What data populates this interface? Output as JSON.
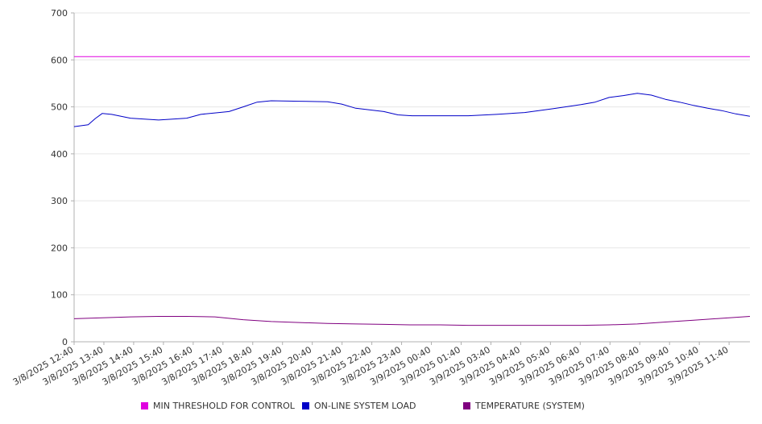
{
  "chart_data": {
    "type": "line",
    "title": "",
    "xlabel": "",
    "ylabel": "",
    "ylim": [
      0,
      700
    ],
    "y_ticks": [
      0,
      100,
      200,
      300,
      400,
      500,
      600,
      700
    ],
    "x_range": [
      "3/8/2025 12:40",
      "3/9/2025 12:40"
    ],
    "x_tick_labels": [
      "3/8/2025 12:40",
      "3/8/2025 13:40",
      "3/8/2025 14:40",
      "3/8/2025 15:40",
      "3/8/2025 16:40",
      "3/8/2025 17:40",
      "3/8/2025 18:40",
      "3/8/2025 19:40",
      "3/8/2025 20:40",
      "3/8/2025 21:40",
      "3/8/2025 22:40",
      "3/8/2025 23:40",
      "3/9/2025 00:40",
      "3/9/2025 01:40",
      "3/9/2025 03:40",
      "3/9/2025 04:40",
      "3/9/2025 05:40",
      "3/9/2025 06:40",
      "3/9/2025 07:40",
      "3/9/2025 08:40",
      "3/9/2025 09:40",
      "3/9/2025 10:40",
      "3/9/2025 11:40"
    ],
    "grid": true,
    "legend_position": "bottom",
    "series": [
      {
        "name": "MIN THRESHOLD FOR CONTROL",
        "color": "#e000e0",
        "x": [
          "3/8/2025 12:40",
          "3/9/2025 12:40"
        ],
        "values": [
          607,
          607
        ]
      },
      {
        "name": "ON-LINE SYSTEM LOAD",
        "color": "#0000c8",
        "x": [
          "3/8/2025 12:40",
          "3/8/2025 13:10",
          "3/8/2025 13:25",
          "3/8/2025 13:40",
          "3/8/2025 14:00",
          "3/8/2025 14:40",
          "3/8/2025 15:40",
          "3/8/2025 16:40",
          "3/8/2025 17:10",
          "3/8/2025 17:40",
          "3/8/2025 18:10",
          "3/8/2025 18:40",
          "3/8/2025 19:10",
          "3/8/2025 19:40",
          "3/8/2025 20:40",
          "3/8/2025 21:40",
          "3/8/2025 22:10",
          "3/8/2025 22:40",
          "3/8/2025 23:40",
          "3/9/2025 00:10",
          "3/9/2025 00:40",
          "3/9/2025 01:40",
          "3/9/2025 02:40",
          "3/9/2025 03:40",
          "3/9/2025 04:40",
          "3/9/2025 05:40",
          "3/9/2025 06:40",
          "3/9/2025 07:10",
          "3/9/2025 07:40",
          "3/9/2025 08:10",
          "3/9/2025 08:40",
          "3/9/2025 09:10",
          "3/9/2025 09:40",
          "3/9/2025 10:10",
          "3/9/2025 10:40",
          "3/9/2025 11:10",
          "3/9/2025 11:40",
          "3/9/2025 12:10",
          "3/9/2025 12:40"
        ],
        "values": [
          458,
          462,
          475,
          486,
          484,
          476,
          472,
          476,
          484,
          487,
          490,
          500,
          510,
          513,
          512,
          511,
          506,
          497,
          490,
          483,
          481,
          481,
          481,
          484,
          488,
          496,
          505,
          510,
          520,
          524,
          529,
          525,
          516,
          510,
          503,
          497,
          492,
          485,
          480
        ]
      },
      {
        "name": "TEMPERATURE (SYSTEM)",
        "color": "#800080",
        "x": [
          "3/8/2025 12:40",
          "3/8/2025 13:40",
          "3/8/2025 14:40",
          "3/8/2025 15:40",
          "3/8/2025 16:40",
          "3/8/2025 17:40",
          "3/8/2025 18:40",
          "3/8/2025 19:40",
          "3/8/2025 20:40",
          "3/8/2025 21:40",
          "3/8/2025 22:40",
          "3/8/2025 23:40",
          "3/9/2025 00:40",
          "3/9/2025 01:40",
          "3/9/2025 02:40",
          "3/9/2025 03:40",
          "3/9/2025 04:40",
          "3/9/2025 05:40",
          "3/9/2025 06:40",
          "3/9/2025 07:40",
          "3/9/2025 08:40",
          "3/9/2025 09:40",
          "3/9/2025 10:40",
          "3/9/2025 11:40",
          "3/9/2025 12:40"
        ],
        "values": [
          49,
          51,
          53,
          54,
          54,
          53,
          47,
          43,
          41,
          39,
          38,
          37,
          36,
          36,
          35,
          35,
          35,
          35,
          35,
          36,
          38,
          42,
          46,
          50,
          54
        ]
      }
    ]
  }
}
